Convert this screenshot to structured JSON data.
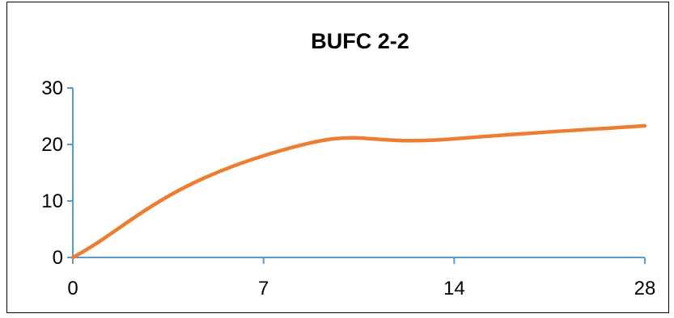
{
  "chart_data": {
    "type": "line",
    "title": "BUFC 2-2",
    "xlabel": "",
    "ylabel": "",
    "categories": [
      "0",
      "7",
      "14",
      "28"
    ],
    "series": [
      {
        "values": [
          0,
          18,
          21,
          23.3
        ],
        "color": "#ed7d31"
      }
    ],
    "ylim": [
      0,
      30
    ],
    "yticks": [
      0,
      10,
      20,
      30
    ],
    "grid": false,
    "legend": "none",
    "axis_color": "#5b9bd5"
  }
}
